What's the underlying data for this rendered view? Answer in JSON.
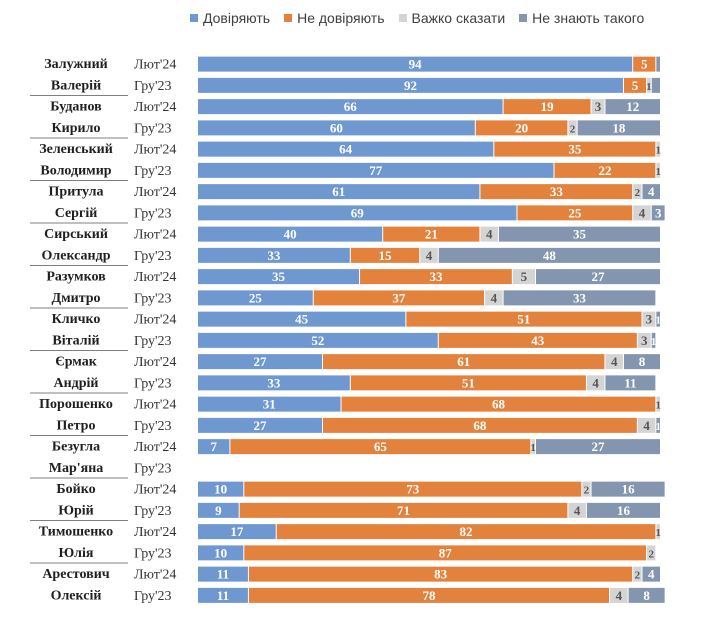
{
  "legend": [
    {
      "label": "Довіряють",
      "color": "#6F98D0"
    },
    {
      "label": "Не довіряють",
      "color": "#E3823C"
    },
    {
      "label": "Важко сказати",
      "color": "#D4D4D4"
    },
    {
      "label": "Не знають такого",
      "color": "#8495B0"
    }
  ],
  "chart_data": {
    "type": "bar",
    "orientation": "horizontal",
    "stacked": true,
    "xlim": [
      0,
      100
    ],
    "legend_position": "top",
    "series": [
      {
        "name": "Довіряють",
        "color": "#6F98D0"
      },
      {
        "name": "Не довіряють",
        "color": "#E3823C"
      },
      {
        "name": "Важко сказати",
        "color": "#D4D4D4"
      },
      {
        "name": "Не знають такого",
        "color": "#8495B0"
      }
    ],
    "groups": [
      {
        "name": [
          "Залужний",
          "Валерій"
        ],
        "rows": [
          {
            "period": "Лют'24",
            "values": [
              94,
              5,
              0,
              1
            ],
            "labels": [
              "94",
              "5",
              "",
              ""
            ]
          },
          {
            "period": "Гру'23",
            "values": [
              92,
              5,
              1,
              2
            ],
            "labels": [
              "92",
              "5",
              "1",
              ""
            ]
          }
        ]
      },
      {
        "name": [
          "Буданов",
          "Кирило"
        ],
        "rows": [
          {
            "period": "Лют'24",
            "values": [
              66,
              19,
              3,
              12
            ],
            "labels": [
              "66",
              "19",
              "3",
              "12"
            ]
          },
          {
            "period": "Гру'23",
            "values": [
              60,
              20,
              2,
              18
            ],
            "labels": [
              "60",
              "20",
              "2",
              "18"
            ]
          }
        ]
      },
      {
        "name": [
          "Зеленський",
          "Володимир"
        ],
        "rows": [
          {
            "period": "Лют'24",
            "values": [
              64,
              35,
              1,
              0
            ],
            "labels": [
              "64",
              "35",
              "1",
              ""
            ]
          },
          {
            "period": "Гру'23",
            "values": [
              77,
              22,
              1,
              0
            ],
            "labels": [
              "77",
              "22",
              "1",
              ""
            ]
          }
        ]
      },
      {
        "name": [
          "Притула",
          "Сергій"
        ],
        "rows": [
          {
            "period": "Лют'24",
            "values": [
              61,
              33,
              2,
              4
            ],
            "labels": [
              "61",
              "33",
              "2",
              "4"
            ]
          },
          {
            "period": "Гру'23",
            "values": [
              69,
              25,
              4,
              3
            ],
            "labels": [
              "69",
              "25",
              "4",
              "3"
            ]
          }
        ]
      },
      {
        "name": [
          "Сирський",
          "Олександр"
        ],
        "rows": [
          {
            "period": "Лют'24",
            "values": [
              40,
              21,
              4,
              35
            ],
            "labels": [
              "40",
              "21",
              "4",
              "35"
            ]
          },
          {
            "period": "Гру'23",
            "values": [
              33,
              15,
              4,
              48
            ],
            "labels": [
              "33",
              "15",
              "4",
              "48"
            ]
          }
        ]
      },
      {
        "name": [
          "Разумков",
          "Дмитро"
        ],
        "rows": [
          {
            "period": "Лют'24",
            "values": [
              35,
              33,
              5,
              27
            ],
            "labels": [
              "35",
              "33",
              "5",
              "27"
            ]
          },
          {
            "period": "Гру'23",
            "values": [
              25,
              37,
              4,
              33
            ],
            "labels": [
              "25",
              "37",
              "4",
              "33"
            ]
          }
        ]
      },
      {
        "name": [
          "Кличко",
          "Віталій"
        ],
        "rows": [
          {
            "period": "Лют'24",
            "values": [
              45,
              51,
              3,
              1
            ],
            "labels": [
              "45",
              "51",
              "3",
              "1"
            ]
          },
          {
            "period": "Гру'23",
            "values": [
              52,
              43,
              3,
              1
            ],
            "labels": [
              "52",
              "43",
              "3",
              "1"
            ]
          }
        ]
      },
      {
        "name": [
          "Єрмак",
          "Андрій"
        ],
        "rows": [
          {
            "period": "Лют'24",
            "values": [
              27,
              61,
              4,
              8
            ],
            "labels": [
              "27",
              "61",
              "4",
              "8"
            ]
          },
          {
            "period": "Гру'23",
            "values": [
              33,
              51,
              4,
              11
            ],
            "labels": [
              "33",
              "51",
              "4",
              "11"
            ]
          }
        ]
      },
      {
        "name": [
          "Порошенко",
          "Петро"
        ],
        "rows": [
          {
            "period": "Лют'24",
            "values": [
              31,
              68,
              1,
              0
            ],
            "labels": [
              "31",
              "68",
              "1",
              ""
            ]
          },
          {
            "period": "Гру'23",
            "values": [
              27,
              68,
              4,
              1
            ],
            "labels": [
              "27",
              "68",
              "4",
              "1"
            ]
          }
        ]
      },
      {
        "name": [
          "Безугла",
          "Мар'яна"
        ],
        "rows": [
          {
            "period": "Лют'24",
            "values": [
              7,
              65,
              1,
              27
            ],
            "labels": [
              "7",
              "65",
              "1",
              "27"
            ]
          },
          {
            "period": "Гру'23",
            "values": [
              0,
              0,
              0,
              0
            ],
            "labels": [
              "",
              "",
              "",
              ""
            ]
          }
        ]
      },
      {
        "name": [
          "Бойко",
          "Юрій"
        ],
        "rows": [
          {
            "period": "Лют'24",
            "values": [
              10,
              73,
              2,
              16
            ],
            "labels": [
              "10",
              "73",
              "2",
              "16"
            ]
          },
          {
            "period": "Гру'23",
            "values": [
              9,
              71,
              4,
              16
            ],
            "labels": [
              "9",
              "71",
              "4",
              "16"
            ]
          }
        ]
      },
      {
        "name": [
          "Тимошенко",
          "Юлія"
        ],
        "rows": [
          {
            "period": "Лют'24",
            "values": [
              17,
              82,
              1,
              0
            ],
            "labels": [
              "17",
              "82",
              "1",
              ""
            ]
          },
          {
            "period": "Гру'23",
            "values": [
              10,
              87,
              2,
              0
            ],
            "labels": [
              "10",
              "87",
              "2",
              ""
            ]
          }
        ]
      },
      {
        "name": [
          "Арестович",
          "Олексій"
        ],
        "rows": [
          {
            "period": "Лют'24",
            "values": [
              11,
              83,
              2,
              4
            ],
            "labels": [
              "11",
              "83",
              "2",
              "4"
            ]
          },
          {
            "period": "Гру'23",
            "values": [
              11,
              78,
              4,
              8
            ],
            "labels": [
              "11",
              "78",
              "4",
              "8"
            ]
          }
        ]
      }
    ]
  }
}
